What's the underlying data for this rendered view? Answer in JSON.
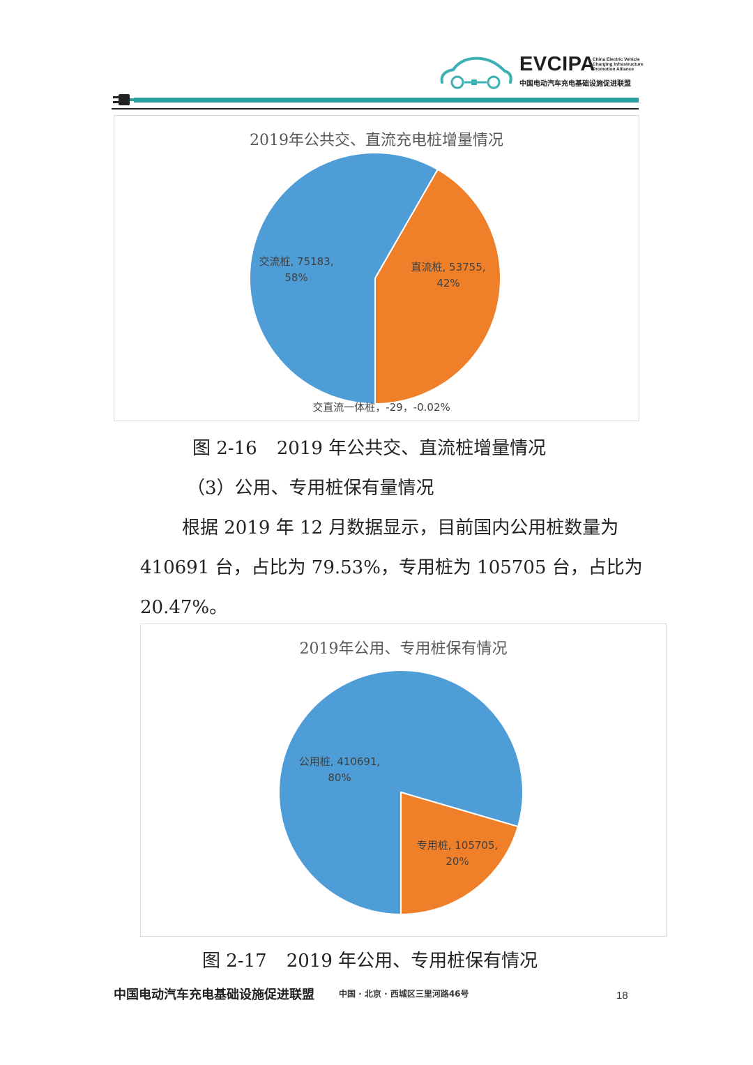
{
  "header": {
    "brand": "EVCIPA",
    "brand_en": "China Electric Vehicle Charging Infrastructure Promotion Alliance",
    "brand_cn": "中国电动汽车充电基础设施促进联盟",
    "accent_color": "#2a9d9f"
  },
  "chart_data": [
    {
      "type": "pie",
      "title": "2019年公共交、直流充电桩增量情况",
      "series": [
        {
          "name": "交流桩",
          "value": 75183,
          "percent": "58%",
          "color": "#4f9dd6"
        },
        {
          "name": "直流桩",
          "value": 53755,
          "percent": "42%",
          "color": "#f07f2a"
        },
        {
          "name": "交直流一体桩",
          "value": -29,
          "percent": "-0.02%"
        }
      ],
      "labels": {
        "ac_line1": "交流桩, 75183,",
        "ac_line2": "58%",
        "dc_line1": "直流桩, 53755,",
        "dc_line2": "42%",
        "acdc": "交直流一体桩，-29，-0.02%"
      }
    },
    {
      "type": "pie",
      "title": "2019年公用、专用桩保有情况",
      "series": [
        {
          "name": "公用桩",
          "value": 410691,
          "percent": "80%",
          "color": "#4f9dd6"
        },
        {
          "name": "专用桩",
          "value": 105705,
          "percent": "20%",
          "color": "#f07f2a"
        }
      ],
      "labels": {
        "public_line1": "公用桩, 410691,",
        "public_line2": "80%",
        "private_line1": "专用桩, 105705,",
        "private_line2": "20%"
      }
    }
  ],
  "captions": {
    "fig16_num": "图 2-16",
    "fig16_text": "2019 年公共交、直流桩增量情况",
    "fig17_num": "图 2-17",
    "fig17_text": "2019 年公用、专用桩保有情况"
  },
  "body": {
    "subheading": "（3）公用、专用桩保有量情况",
    "para_line1": "根据 2019 年 12 月数据显示，目前国内公用桩数量为",
    "para_line2": "410691 台，占比为 79.53%，专用桩为 105705 台，占比为",
    "para_line3": "20.47%。"
  },
  "footer": {
    "org": "中国电动汽车充电基础设施促进联盟",
    "address": "中国 · 北京 · 西城区三里河路46号",
    "page": "18"
  }
}
